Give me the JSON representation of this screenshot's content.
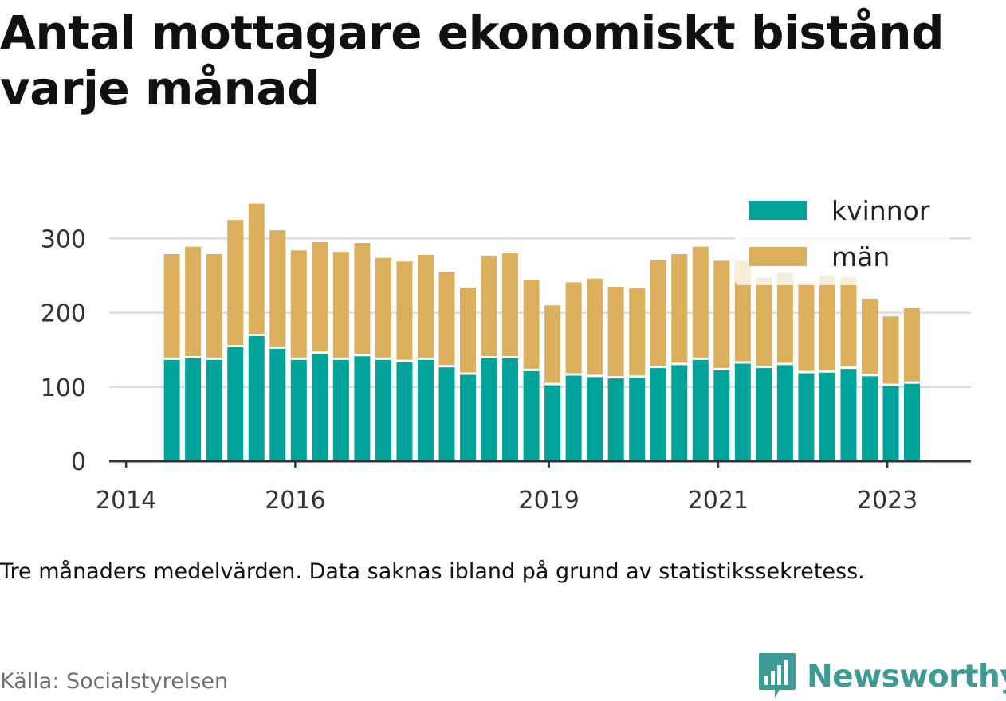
{
  "title": "Antal mottagare ekonomiskt bistånd varje månad",
  "note": "Tre månaders medelvärden. Data saknas ibland på grund av statistikssekretess.",
  "source": "Källa: Socialstyrelsen",
  "brand": {
    "name": "Newsworthy",
    "icon": "newsworthy-logo-icon"
  },
  "colors": {
    "kvinnor": "#00a39a",
    "man": "#dbaf5c",
    "grid": "#dddddd",
    "axis": "#333333",
    "brand": "#3e9a94"
  },
  "chart_data": {
    "type": "bar",
    "stacked": true,
    "x_axis_type": "time",
    "x_tick_labels": [
      "2014",
      "2016",
      "2019",
      "2021",
      "2023"
    ],
    "y_tick_labels": [
      "0",
      "100",
      "200",
      "300"
    ],
    "ylim": [
      0,
      350
    ],
    "grid": "horizontal",
    "legend": "top-right",
    "x": [
      "2014-07",
      "2014-10",
      "2015-01",
      "2015-04",
      "2015-07",
      "2015-10",
      "2016-01",
      "2016-04",
      "2016-07",
      "2016-10",
      "2017-01",
      "2017-04",
      "2017-07",
      "2017-10",
      "2018-01",
      "2018-04",
      "2018-07",
      "2018-10",
      "2019-01",
      "2019-04",
      "2019-07",
      "2019-10",
      "2020-01",
      "2020-04",
      "2020-07",
      "2020-10",
      "2021-01",
      "2021-04",
      "2021-07",
      "2021-10",
      "2022-01",
      "2022-04",
      "2022-07",
      "2022-10",
      "2023-01",
      "2023-04"
    ],
    "series": [
      {
        "name": "kvinnor",
        "values": [
          138,
          140,
          138,
          155,
          170,
          153,
          138,
          146,
          138,
          143,
          138,
          135,
          138,
          128,
          118,
          140,
          140,
          123,
          104,
          117,
          115,
          113,
          114,
          127,
          131,
          138,
          124,
          133,
          127,
          131,
          120,
          121,
          126,
          116,
          103,
          106
        ]
      },
      {
        "name": "män",
        "values": [
          141,
          149,
          141,
          170,
          177,
          158,
          146,
          149,
          144,
          151,
          136,
          134,
          140,
          127,
          116,
          137,
          140,
          121,
          106,
          124,
          131,
          122,
          119,
          144,
          148,
          151,
          146,
          137,
          120,
          123,
          120,
          129,
          122,
          103,
          92,
          100
        ]
      }
    ]
  }
}
